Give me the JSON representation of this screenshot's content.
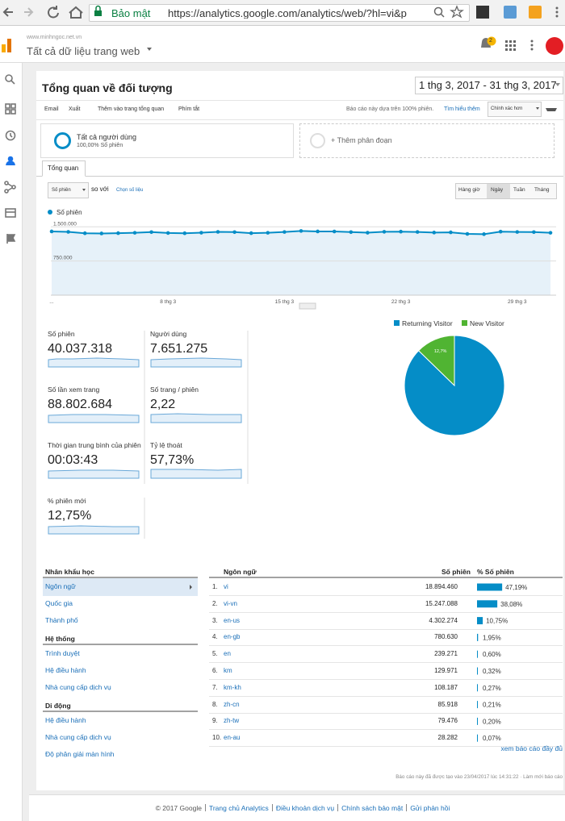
{
  "browser": {
    "secure": "Bảo mật",
    "url": "https://analytics.google.com/analytics/web/?hl=vi&p"
  },
  "header": {
    "site": "www.minhngoc.net.vn",
    "property": "Tất cả dữ liệu trang web",
    "notifications": "2"
  },
  "report": {
    "title": "Tổng quan về đối tượng",
    "date_range": "1 thg 3, 2017 - 31 thg 3, 2017"
  },
  "toolbar": {
    "items": [
      "Email",
      "Xuất",
      "Thêm vào trang tổng quan",
      "Phím tắt"
    ],
    "sampling": "Báo cáo này dựa trên 100% phiên.",
    "learn_more": "Tìm hiểu thêm",
    "precision": "Chính xác hơn"
  },
  "segments": {
    "name": "Tất cả người dùng",
    "share": "100,00% Số phiên",
    "add": "+ Thêm phân đoạn"
  },
  "tab": "Tổng quan",
  "controls": {
    "metric": "Số phiên",
    "versus": "so với",
    "choose": "Chọn số liệu",
    "granularity": [
      "Hàng giờ",
      "Ngày",
      "Tuần",
      "Tháng"
    ]
  },
  "scorecards": [
    {
      "label": "Số phiên",
      "value": "40.037.318"
    },
    {
      "label": "Người dùng",
      "value": "7.651.275"
    },
    {
      "label": "Số lần xem trang",
      "value": "88.802.684"
    },
    {
      "label": "Số trang / phiên",
      "value": "2,22"
    },
    {
      "label": "Thời gian trung bình của phiên",
      "value": "00:03:43"
    },
    {
      "label": "Tỷ lệ thoát",
      "value": "57,73%"
    },
    {
      "label": "% phiên mới",
      "value": "12,75%"
    }
  ],
  "chart_data": [
    {
      "type": "line",
      "categories": [
        "...",
        null,
        null,
        null,
        null,
        null,
        null,
        "8 thg 3",
        null,
        null,
        null,
        null,
        null,
        null,
        "15 thg 3",
        null,
        null,
        null,
        null,
        null,
        null,
        "22 thg 3",
        null,
        null,
        null,
        null,
        null,
        null,
        "29 thg 3",
        null,
        null
      ],
      "series": [
        {
          "name": "Số phiên",
          "color": "#058dc7",
          "values": [
            1400000,
            1390000,
            1360000,
            1355000,
            1362000,
            1370000,
            1385000,
            1365000,
            1360000,
            1372000,
            1390000,
            1385000,
            1362000,
            1370000,
            1388000,
            1410000,
            1400000,
            1398000,
            1385000,
            1372000,
            1392000,
            1395000,
            1388000,
            1375000,
            1380000,
            1345000,
            1340000,
            1395000,
            1388000,
            1385000,
            1370000
          ]
        }
      ],
      "ylim": [
        0,
        1700000
      ],
      "yticks": [
        {
          "value": 750000,
          "label": "750.000"
        },
        {
          "value": 1500000,
          "label": "1.500.000"
        }
      ],
      "grid": true
    },
    {
      "type": "pie",
      "categories": [
        "Returning Visitor",
        "New Visitor"
      ],
      "values": [
        87.3,
        12.7
      ],
      "value_labels": [
        "87,3%",
        "12,7%"
      ],
      "colors": [
        "#058dc7",
        "#50b432"
      ]
    },
    {
      "type": "bar",
      "values": [
        47.19,
        38.08,
        10.75,
        1.95,
        0.6,
        0.32,
        0.27,
        0.21,
        0.2,
        0.07
      ],
      "value_labels": [
        "47,19%",
        "38,08%",
        "10,75%",
        "1,95%",
        "0,60%",
        "0,32%",
        "0,27%",
        "0,21%",
        "0,20%",
        "0,07%"
      ],
      "color": "#058dc7",
      "xlim": [
        0,
        100
      ]
    }
  ],
  "nav": {
    "sections": [
      {
        "title": "Nhân khẩu học",
        "items": [
          "Ngôn ngữ",
          "Quốc gia",
          "Thành phố"
        ]
      },
      {
        "title": "Hệ thống",
        "items": [
          "Trình duyệt",
          "Hệ điều hành",
          "Nhà cung cấp dịch vụ"
        ]
      },
      {
        "title": "Di động",
        "items": [
          "Hệ điều hành",
          "Nhà cung cấp dịch vụ",
          "Độ phân giải màn hình"
        ]
      }
    ]
  },
  "table": {
    "headers": [
      "Ngôn ngữ",
      "Số phiên",
      "% Số phiên"
    ],
    "rows": [
      [
        "1.",
        "vi",
        "18.894.460"
      ],
      [
        "2.",
        "vi-vn",
        "15.247.088"
      ],
      [
        "3.",
        "en-us",
        "4.302.274"
      ],
      [
        "4.",
        "en-gb",
        "780.630"
      ],
      [
        "5.",
        "en",
        "239.271"
      ],
      [
        "6.",
        "km",
        "129.971"
      ],
      [
        "7.",
        "km-kh",
        "108.187"
      ],
      [
        "8.",
        "zh-cn",
        "85.918"
      ],
      [
        "9.",
        "zh-tw",
        "79.476"
      ],
      [
        "10.",
        "en-au",
        "28.282"
      ]
    ]
  },
  "full_report": "xem báo cáo đầy đủ",
  "generated": "Báo cáo này đã được tạo vào 23/04/2017 lúc 14:31:22 · Làm mới báo cáo",
  "footer": [
    "© 2017 Google",
    "Trang chủ Analytics",
    "Điều khoản dịch vụ",
    "Chính sách bảo mật",
    "Gửi phản hồi"
  ]
}
